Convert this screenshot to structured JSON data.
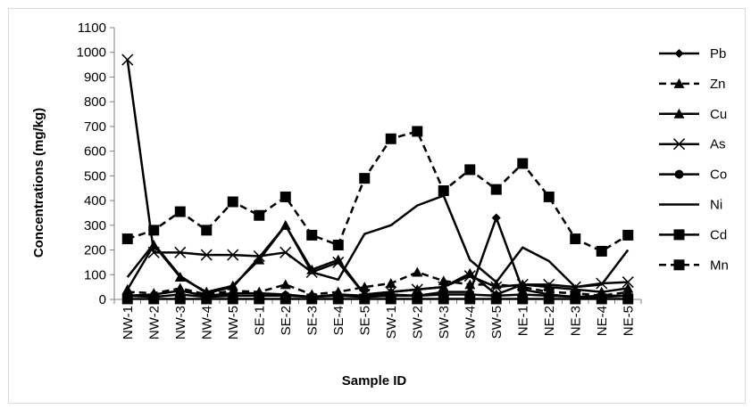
{
  "chart_data": {
    "type": "line",
    "title": "",
    "xlabel": "Sample ID",
    "ylabel": "Concentrations (mg/kg)",
    "ylim": [
      0,
      1100
    ],
    "yticks": [
      0,
      100,
      200,
      300,
      400,
      500,
      600,
      700,
      800,
      900,
      1000,
      1100
    ],
    "grid": false,
    "legend_position": "right",
    "categories": [
      "NW-1",
      "NW-2",
      "NW-3",
      "NW-4",
      "NW-5",
      "SE-1",
      "SE-2",
      "SE-3",
      "SE-4",
      "SE-5",
      "SW-1",
      "SW-2",
      "SW-3",
      "SW-4",
      "SW-5",
      "NE-1",
      "NE-2",
      "NE-3",
      "NE-4",
      "NE-5"
    ],
    "series": [
      {
        "name": "Pb",
        "marker": "diamond",
        "dash": "solid",
        "values": [
          15,
          20,
          35,
          15,
          25,
          25,
          20,
          10,
          20,
          15,
          20,
          15,
          30,
          30,
          330,
          40,
          20,
          10,
          15,
          15
        ]
      },
      {
        "name": "Zn",
        "marker": "triangle",
        "dash": "dashed",
        "values": [
          30,
          25,
          45,
          20,
          35,
          30,
          60,
          20,
          30,
          50,
          65,
          110,
          75,
          60,
          60,
          50,
          30,
          25,
          15,
          30
        ]
      },
      {
        "name": "Cu",
        "marker": "triangle",
        "dash": "solid",
        "values": [
          40,
          220,
          90,
          30,
          55,
          160,
          300,
          120,
          160,
          20,
          30,
          40,
          50,
          105,
          20,
          60,
          50,
          40,
          30,
          45
        ]
      },
      {
        "name": "As",
        "marker": "x",
        "dash": "solid",
        "values": [
          970,
          190,
          190,
          180,
          180,
          175,
          190,
          110,
          150,
          20,
          30,
          40,
          50,
          95,
          50,
          60,
          60,
          50,
          65,
          70
        ]
      },
      {
        "name": "Co",
        "marker": "circle",
        "dash": "solid",
        "values": [
          15,
          10,
          20,
          10,
          15,
          15,
          15,
          10,
          15,
          10,
          15,
          15,
          20,
          20,
          15,
          20,
          15,
          10,
          10,
          15
        ]
      },
      {
        "name": "Ni",
        "marker": "none",
        "dash": "solid",
        "values": [
          90,
          225,
          95,
          25,
          50,
          170,
          300,
          110,
          80,
          265,
          300,
          380,
          420,
          160,
          70,
          210,
          155,
          50,
          60,
          200
        ]
      },
      {
        "name": "Cd",
        "marker": "square",
        "dash": "solid",
        "values": [
          2,
          2,
          2,
          2,
          2,
          2,
          2,
          2,
          2,
          2,
          2,
          2,
          2,
          2,
          2,
          2,
          2,
          2,
          2,
          2
        ]
      },
      {
        "name": "Mn",
        "marker": "square",
        "dash": "dashed",
        "values": [
          245,
          280,
          355,
          280,
          395,
          340,
          415,
          260,
          220,
          490,
          650,
          680,
          440,
          525,
          445,
          550,
          415,
          245,
          195,
          260
        ]
      }
    ]
  }
}
